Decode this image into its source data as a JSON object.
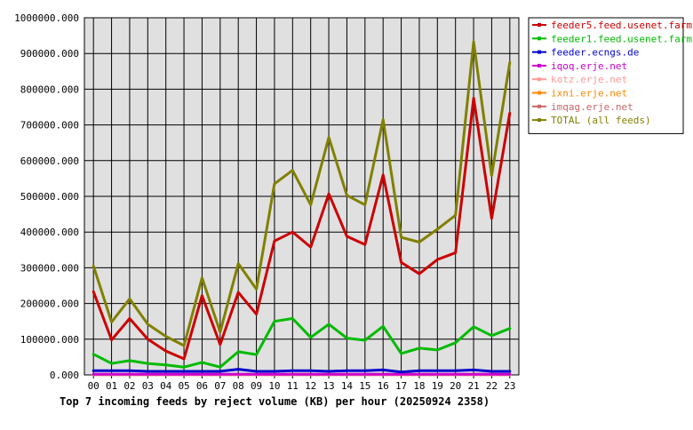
{
  "chart_data": {
    "type": "line",
    "title": "Top 7 incoming feeds by reject volume (KB) per hour (20250924 2358)",
    "xlabel": "",
    "ylabel": "",
    "categories": [
      "00",
      "01",
      "02",
      "03",
      "04",
      "05",
      "06",
      "07",
      "08",
      "09",
      "10",
      "11",
      "12",
      "13",
      "14",
      "15",
      "16",
      "17",
      "18",
      "19",
      "20",
      "21",
      "22",
      "23"
    ],
    "ylim": [
      0,
      1000000
    ],
    "yticks": [
      "0.000",
      "100000.000",
      "200000.000",
      "300000.000",
      "400000.000",
      "500000.000",
      "600000.000",
      "700000.000",
      "800000.000",
      "900000.000",
      "1000000.000"
    ],
    "ytick_values": [
      0,
      100000,
      200000,
      300000,
      400000,
      500000,
      600000,
      700000,
      800000,
      900000,
      1000000
    ],
    "grid": true,
    "legend_position": "right",
    "plot_background": "#e0e0e0",
    "series": [
      {
        "name": "feeder5.feed.usenet.farm",
        "color": "#cc0000",
        "values": [
          233000,
          98000,
          158000,
          100000,
          67000,
          45000,
          222000,
          85000,
          231000,
          170000,
          375000,
          400000,
          358000,
          507000,
          388000,
          365000,
          560000,
          315000,
          283000,
          323000,
          342000,
          775000,
          438000,
          733000
        ]
      },
      {
        "name": "feeder1.feed.usenet.farm",
        "color": "#00bb00",
        "values": [
          58000,
          32000,
          40000,
          32000,
          28000,
          22000,
          35000,
          22000,
          65000,
          57000,
          150000,
          158000,
          105000,
          142000,
          103000,
          97000,
          136000,
          60000,
          75000,
          70000,
          90000,
          135000,
          110000,
          130000
        ]
      },
      {
        "name": "feeder.ecngs.de",
        "color": "#0000cc",
        "values": [
          12000,
          12000,
          12000,
          10000,
          10000,
          10000,
          10000,
          10000,
          16000,
          10000,
          10000,
          12000,
          12000,
          10000,
          12000,
          12000,
          14000,
          8000,
          12000,
          12000,
          12000,
          14000,
          10000,
          10000
        ]
      },
      {
        "name": "iqoq.erje.net",
        "color": "#cc00cc",
        "values": [
          2000,
          2000,
          2000,
          2000,
          2000,
          2000,
          2000,
          2000,
          2000,
          2000,
          2000,
          2000,
          2000,
          2000,
          2000,
          2000,
          2000,
          2000,
          2000,
          2000,
          2000,
          2000,
          2000,
          2000
        ]
      },
      {
        "name": "kotz.erje.net",
        "color": "#ff9999",
        "values": [
          1000,
          1000,
          1000,
          1000,
          1000,
          1000,
          1000,
          1000,
          1000,
          1000,
          1000,
          1000,
          1000,
          1000,
          1000,
          1000,
          1000,
          1000,
          1000,
          1000,
          1000,
          1000,
          1000,
          1000
        ]
      },
      {
        "name": "ixni.erje.net",
        "color": "#ff8800",
        "values": [
          1000,
          1000,
          1000,
          1000,
          1000,
          1000,
          1000,
          1000,
          1000,
          1000,
          1000,
          1000,
          1000,
          1000,
          1000,
          1000,
          1000,
          1000,
          1000,
          1000,
          1000,
          1000,
          1000,
          1000
        ]
      },
      {
        "name": "imqag.erje.net",
        "color": "#cc6666",
        "values": [
          500,
          500,
          500,
          500,
          500,
          500,
          500,
          500,
          500,
          500,
          500,
          500,
          500,
          500,
          500,
          500,
          500,
          500,
          500,
          500,
          500,
          500,
          500,
          500
        ]
      },
      {
        "name": "TOTAL (all feeds)",
        "color": "#808000",
        "values": [
          305000,
          148000,
          213000,
          142000,
          108000,
          82000,
          272000,
          120000,
          312000,
          240000,
          535000,
          573000,
          476000,
          665000,
          503000,
          476000,
          715000,
          385000,
          372000,
          408000,
          447000,
          933000,
          558000,
          875000
        ]
      }
    ]
  }
}
